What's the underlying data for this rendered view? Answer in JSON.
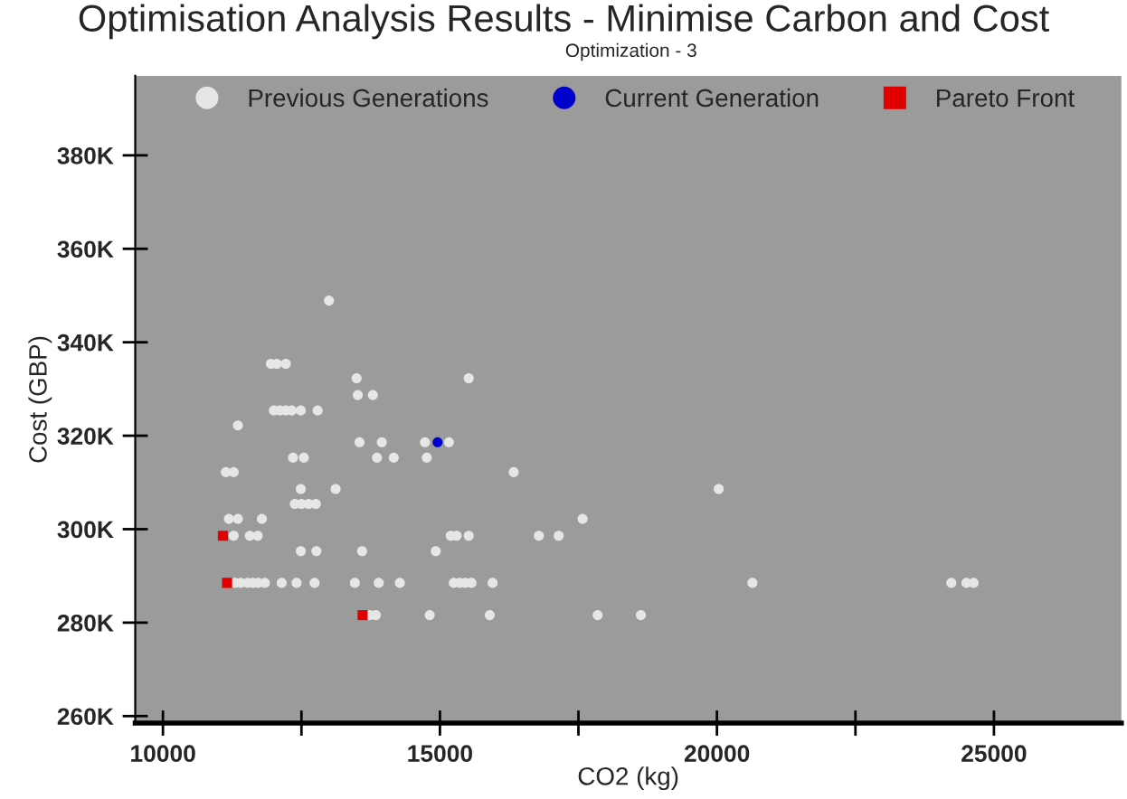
{
  "chart_data": {
    "type": "scatter",
    "title": "Optimisation Analysis Results - Minimise Carbon and Cost",
    "subtitle": "Optimization - 3",
    "xlabel": "CO2 (kg)",
    "ylabel": "Cost (GBP)",
    "xlim": [
      9500,
      27300
    ],
    "ylim": [
      258500,
      397000
    ],
    "xticks": [
      10000,
      {
        "value": 12500,
        "label": null
      },
      15000,
      {
        "value": 17500,
        "label": null
      },
      20000,
      {
        "value": 22500,
        "label": null
      },
      25000
    ],
    "yticks": [
      {
        "value": 260000,
        "label": "260K"
      },
      {
        "value": 280000,
        "label": "280K"
      },
      {
        "value": 300000,
        "label": "300K"
      },
      {
        "value": 320000,
        "label": "320K"
      },
      {
        "value": 340000,
        "label": "340K"
      },
      {
        "value": 360000,
        "label": "360K"
      },
      {
        "value": 380000,
        "label": "380K"
      }
    ],
    "grid": false,
    "legend": "top",
    "series": [
      {
        "name": "Previous Generations",
        "color": "#e6e6e6",
        "marker": "circle",
        "x": [
          12997,
          11948,
          12055,
          12218,
          13496,
          15519,
          13517,
          13789,
          12002,
          12110,
          12218,
          12327,
          12489,
          12792,
          11353,
          13549,
          13951,
          14730,
          15162,
          12348,
          12543,
          13864,
          14166,
          14763,
          11136,
          11277,
          12489,
          13117,
          12380,
          12500,
          12630,
          12760,
          11191,
          11353,
          11786,
          11277,
          11568,
          11710,
          15195,
          15302,
          15519,
          12489,
          12770,
          13594,
          14925,
          11300,
          11405,
          11526,
          11623,
          11721,
          11840,
          12143,
          12412,
          12737,
          13464,
          13896,
          14276,
          15250,
          15360,
          15460,
          15570,
          15951,
          13734,
          13843,
          14815,
          15899,
          17847,
          18627,
          16331,
          20032,
          17575,
          16786,
          17143,
          20640,
          24231,
          24503,
          24633
        ],
        "values": [
          348900,
          335400,
          335400,
          335400,
          332300,
          332300,
          328700,
          328700,
          325400,
          325400,
          325400,
          325400,
          325400,
          325400,
          322200,
          318600,
          318600,
          318600,
          318600,
          315300,
          315300,
          315300,
          315300,
          315300,
          312200,
          312200,
          308600,
          308600,
          305400,
          305400,
          305400,
          305400,
          302200,
          302200,
          302200,
          298600,
          298600,
          298600,
          298600,
          298600,
          298600,
          295300,
          295300,
          295300,
          295300,
          288500,
          288500,
          288500,
          288500,
          288500,
          288500,
          288500,
          288500,
          288500,
          288500,
          288500,
          288500,
          288500,
          288500,
          288500,
          288500,
          288500,
          281600,
          281600,
          281600,
          281600,
          281600,
          281600,
          312200,
          308600,
          302200,
          298600,
          298600,
          288500,
          288500,
          288500,
          288500
        ]
      },
      {
        "name": "Current Generation",
        "color": "#0000cc",
        "marker": "circle",
        "x": [
          14957
        ],
        "values": [
          318600
        ]
      },
      {
        "name": "Pareto Front",
        "color": "#e00000",
        "marker": "square",
        "x": [
          11082,
          11158,
          13604
        ],
        "values": [
          298600,
          288500,
          281600
        ]
      }
    ]
  }
}
